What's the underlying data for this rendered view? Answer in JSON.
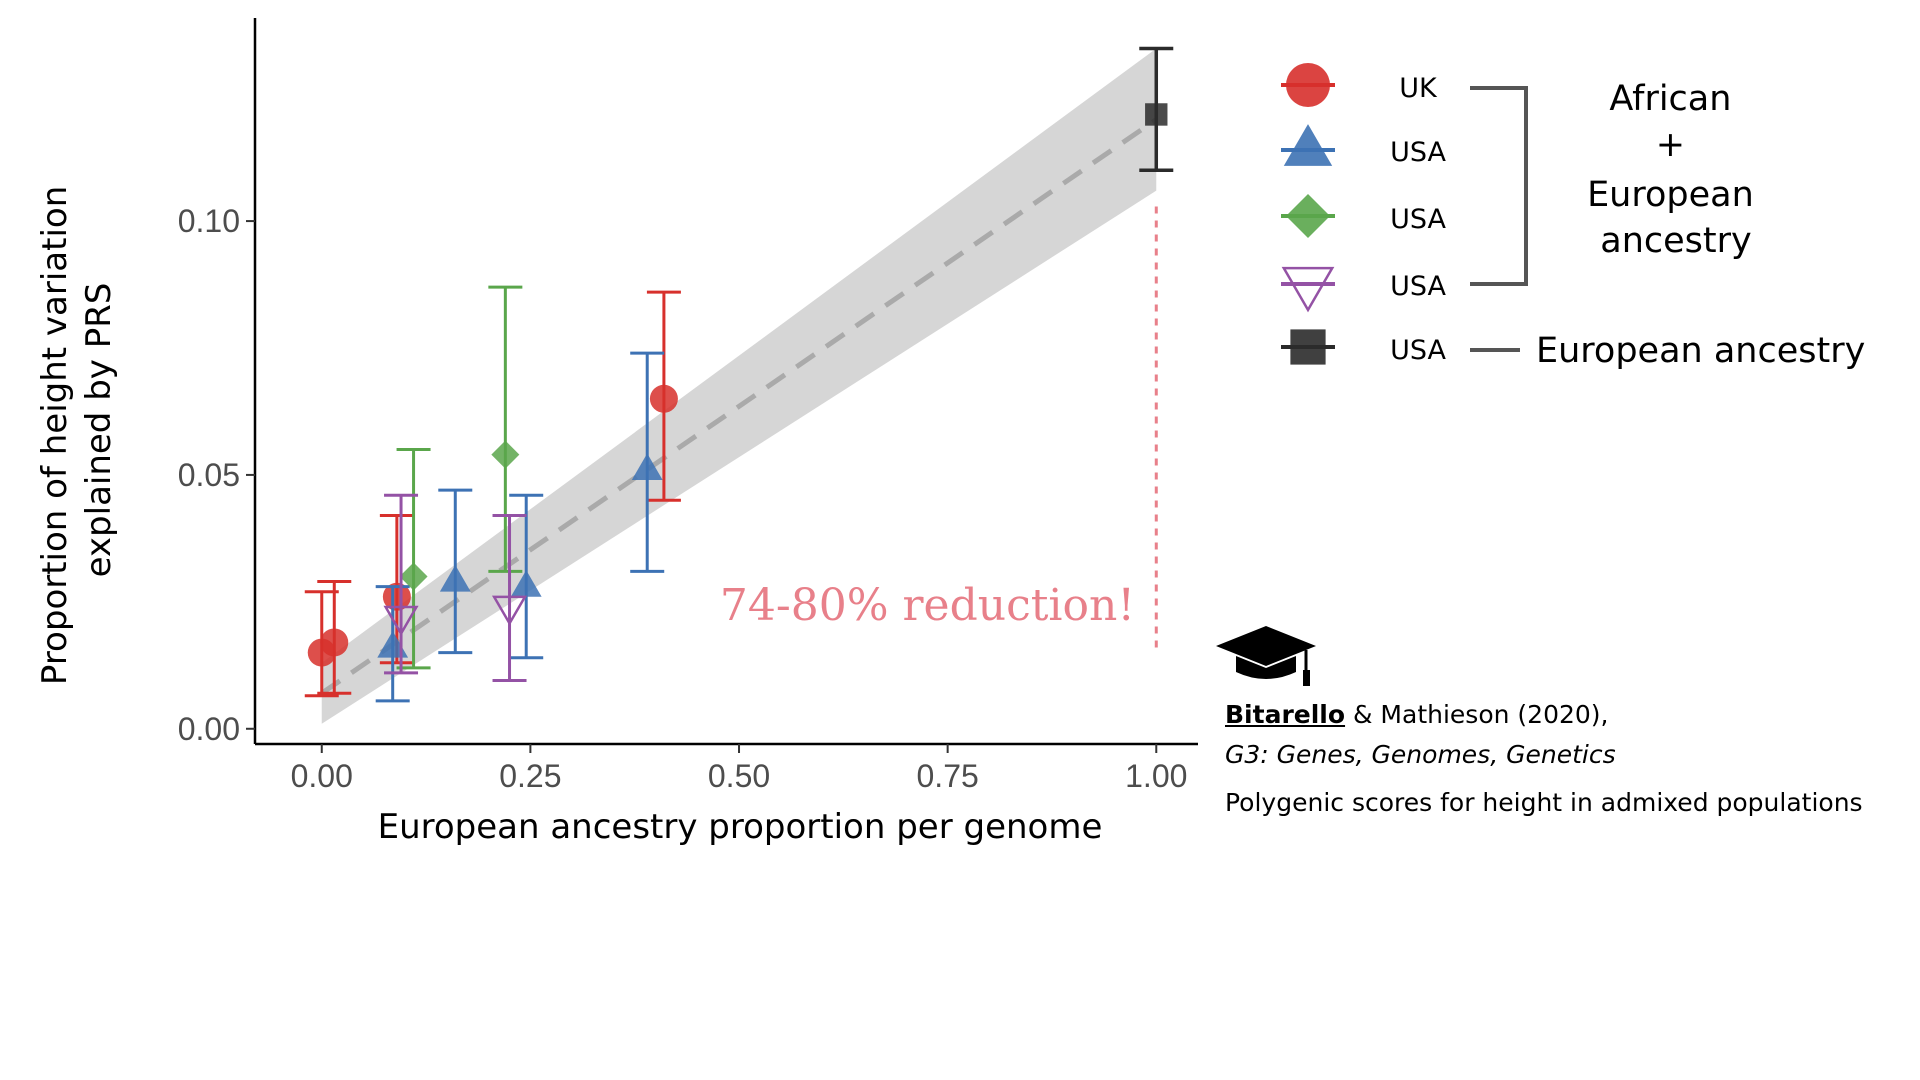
{
  "chart_data": {
    "type": "scatter",
    "xlabel": "European ancestry proportion per genome",
    "ylabel": [
      "Proportion of height variation",
      "explained by PRS"
    ],
    "xlim": [
      -0.08,
      1.05
    ],
    "ylim": [
      -0.003,
      0.14
    ],
    "xticks": [
      0.0,
      0.25,
      0.5,
      0.75,
      1.0
    ],
    "xtick_labels": [
      "0.00",
      "0.25",
      "0.50",
      "0.75",
      "1.00"
    ],
    "yticks": [
      0.0,
      0.05,
      0.1
    ],
    "ytick_labels": [
      "0.00",
      "0.05",
      "0.10"
    ],
    "grid": false,
    "fit_line": {
      "x": [
        0.0,
        1.0
      ],
      "y": [
        0.007,
        0.12
      ],
      "ci_lower_at": [
        0.001,
        0.106
      ],
      "ci_upper_at": [
        0.013,
        0.134
      ],
      "style": "dashed",
      "color": "#aaaaaa"
    },
    "series": [
      {
        "key": "uk",
        "marker": "circle",
        "color": "#d7302c",
        "points": [
          {
            "x": 0.0,
            "y": 0.015,
            "lo": 0.0065,
            "hi": 0.027
          },
          {
            "x": 0.015,
            "y": 0.017,
            "lo": 0.007,
            "hi": 0.029
          },
          {
            "x": 0.09,
            "y": 0.026,
            "lo": 0.013,
            "hi": 0.042
          },
          {
            "x": 0.41,
            "y": 0.065,
            "lo": 0.045,
            "hi": 0.086
          }
        ]
      },
      {
        "key": "usa1",
        "marker": "triangle",
        "color": "#3d72b4",
        "points": [
          {
            "x": 0.085,
            "y": 0.016,
            "lo": 0.0055,
            "hi": 0.028
          },
          {
            "x": 0.16,
            "y": 0.029,
            "lo": 0.015,
            "hi": 0.047
          },
          {
            "x": 0.245,
            "y": 0.028,
            "lo": 0.014,
            "hi": 0.046
          },
          {
            "x": 0.39,
            "y": 0.051,
            "lo": 0.031,
            "hi": 0.074
          }
        ]
      },
      {
        "key": "usa2",
        "marker": "diamond",
        "color": "#5aa64b",
        "points": [
          {
            "x": 0.11,
            "y": 0.03,
            "lo": 0.012,
            "hi": 0.055
          },
          {
            "x": 0.22,
            "y": 0.054,
            "lo": 0.031,
            "hi": 0.087
          }
        ]
      },
      {
        "key": "usa3",
        "marker": "triangle-down-open",
        "color": "#9452a5",
        "points": [
          {
            "x": 0.095,
            "y": 0.022,
            "lo": 0.011,
            "hi": 0.046
          },
          {
            "x": 0.225,
            "y": 0.024,
            "lo": 0.0095,
            "hi": 0.042
          }
        ]
      },
      {
        "key": "usa4",
        "marker": "square",
        "color": "#2b2b2b",
        "points": [
          {
            "x": 1.0,
            "y": 0.121,
            "lo": 0.11,
            "hi": 0.134
          }
        ]
      }
    ],
    "annotation": {
      "text": "74-80% reduction!",
      "color": "#e8808a",
      "x": 1.0,
      "y_from": 0.016,
      "y_to": 0.104
    }
  },
  "legend": {
    "items": [
      {
        "label": "UK",
        "marker": "circle",
        "color": "#d7302c"
      },
      {
        "label": "USA",
        "marker": "triangle",
        "color": "#3d72b4"
      },
      {
        "label": "USA",
        "marker": "diamond",
        "color": "#5aa64b"
      },
      {
        "label": "USA",
        "marker": "triangle-down-open",
        "color": "#9452a5"
      },
      {
        "label": "USA",
        "marker": "square",
        "color": "#2b2b2b"
      }
    ],
    "group_admixed": [
      "African",
      "+",
      "European",
      "ancestry"
    ],
    "group_european": "European ancestry",
    "bracket_color": "#555555"
  },
  "citation": {
    "author": "Bitarello",
    "rest": " & Mathieson (2020),",
    "journal": "G3: Genes, Genomes, Genetics",
    "title": "Polygenic scores for height in admixed populations",
    "icon": "graduation-cap-icon"
  }
}
